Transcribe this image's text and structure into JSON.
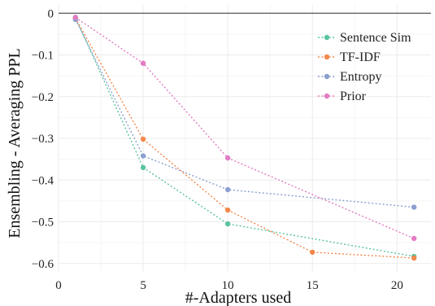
{
  "chart_data": {
    "type": "line",
    "title": "",
    "xlabel": "#-Adapters used",
    "ylabel": "Ensembling - Averaging PPL",
    "xlim": [
      0,
      22
    ],
    "ylim": [
      -0.62,
      0.02
    ],
    "x_ticks": [
      0,
      5,
      10,
      15,
      20
    ],
    "y_ticks": [
      0,
      -0.1,
      -0.2,
      -0.3,
      -0.4,
      -0.5,
      -0.6
    ],
    "x_tick_labels": [
      "0",
      "5",
      "10",
      "15",
      "20"
    ],
    "y_tick_labels": [
      "0",
      "−0.1",
      "−0.2",
      "−0.3",
      "−0.4",
      "−0.5",
      "−0.6"
    ],
    "grid": true,
    "legend_position": "top-right",
    "series": [
      {
        "name": "Sentence Sim",
        "color": "#5ac4a0",
        "x": [
          1,
          5,
          10,
          21
        ],
        "y": [
          -0.01,
          -0.37,
          -0.505,
          -0.583
        ]
      },
      {
        "name": "TF-IDF",
        "color": "#f4874b",
        "x": [
          1,
          5,
          10,
          15,
          21
        ],
        "y": [
          -0.012,
          -0.302,
          -0.472,
          -0.573,
          -0.587
        ]
      },
      {
        "name": "Entropy",
        "color": "#8b9fd0",
        "x": [
          1,
          5,
          10,
          21
        ],
        "y": [
          -0.015,
          -0.342,
          -0.423,
          -0.465
        ]
      },
      {
        "name": "Prior",
        "color": "#e27bc3",
        "x": [
          1,
          5,
          10,
          21
        ],
        "y": [
          -0.01,
          -0.12,
          -0.347,
          -0.54
        ]
      }
    ]
  }
}
